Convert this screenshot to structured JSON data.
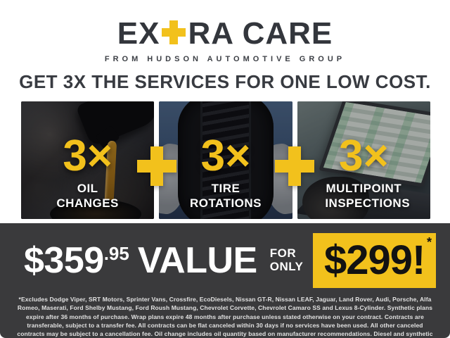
{
  "logo": {
    "prefix": "EX",
    "suffix": "RA CARE",
    "subtitle": "FROM HUDSON AUTOMOTIVE GROUP"
  },
  "headline": "GET 3X THE SERVICES FOR ONE LOW COST.",
  "services": [
    {
      "multiplier": "3×",
      "label": "OIL CHANGES",
      "image": "oil-pour-photo"
    },
    {
      "multiplier": "3×",
      "label": "TIRE ROTATIONS",
      "image": "tire-held-photo"
    },
    {
      "multiplier": "3×",
      "label": "MULTIPOINT INSPECTIONS",
      "image": "laptop-inspection-photo"
    }
  ],
  "offer": {
    "value_amount": "$359",
    "value_cents": ".95",
    "value_label": "VALUE",
    "for_label": "FOR",
    "only_label": "ONLY",
    "sale_price": "$299!",
    "asterisk": "*"
  },
  "disclaimer": "*Excludes Dodge Viper, SRT Motors, Sprinter Vans, Crossfire, EcoDiesels, Nissan GT-R, Nissan LEAF, Jaguar, Land Rover, Audi, Porsche, Alfa Romeo, Maserati, Ford Shelby Mustang, Ford Roush Mustang, Chevrolet Corvette, Chevrolet Camaro SS and Lexus 8-Cylinder. Synthetic plans expire after 36 months of purchase. Wrap plans expire 48 months after purchase unless stated otherwise on your contract. Contracts are transferable, subject to a transfer fee. All contracts can be flat canceled within 30 days if no services have been used. All other canceled contracts may be subject to a cancellation fee. Oil change includes oil quantity based on manufacturer recommendations. Diesel and synthetic upgrades are extra. See dealer for full details.",
  "icons": {
    "logo_plus": "+",
    "separator_plus": "+"
  },
  "colors": {
    "accent_yellow": "#F2C11C",
    "charcoal_text": "#33363C",
    "band_background": "#3A3A3C",
    "white": "#FFFFFF"
  }
}
